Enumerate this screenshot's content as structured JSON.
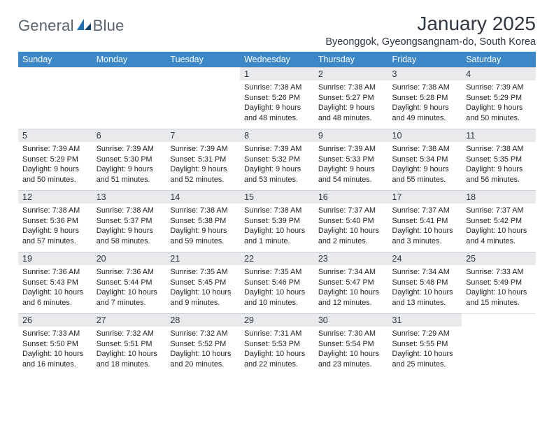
{
  "brand": {
    "name_part1": "General",
    "name_part2": "Blue"
  },
  "colors": {
    "header_bg": "#3b87c8",
    "header_text": "#ffffff",
    "daynum_bg": "#e9eaec",
    "daynum_border": "#c9ccd1",
    "title_text": "#303740",
    "logo_text": "#5a6570",
    "logo_mark": "#1f6fb3"
  },
  "title": "January 2025",
  "location": "Byeonggok, Gyeongsangnam-do, South Korea",
  "weekdays": [
    "Sunday",
    "Monday",
    "Tuesday",
    "Wednesday",
    "Thursday",
    "Friday",
    "Saturday"
  ],
  "weeks": [
    [
      null,
      null,
      null,
      {
        "n": "1",
        "sr": "Sunrise: 7:38 AM",
        "ss": "Sunset: 5:26 PM",
        "dl1": "Daylight: 9 hours",
        "dl2": "and 48 minutes."
      },
      {
        "n": "2",
        "sr": "Sunrise: 7:38 AM",
        "ss": "Sunset: 5:27 PM",
        "dl1": "Daylight: 9 hours",
        "dl2": "and 48 minutes."
      },
      {
        "n": "3",
        "sr": "Sunrise: 7:38 AM",
        "ss": "Sunset: 5:28 PM",
        "dl1": "Daylight: 9 hours",
        "dl2": "and 49 minutes."
      },
      {
        "n": "4",
        "sr": "Sunrise: 7:39 AM",
        "ss": "Sunset: 5:29 PM",
        "dl1": "Daylight: 9 hours",
        "dl2": "and 50 minutes."
      }
    ],
    [
      {
        "n": "5",
        "sr": "Sunrise: 7:39 AM",
        "ss": "Sunset: 5:29 PM",
        "dl1": "Daylight: 9 hours",
        "dl2": "and 50 minutes."
      },
      {
        "n": "6",
        "sr": "Sunrise: 7:39 AM",
        "ss": "Sunset: 5:30 PM",
        "dl1": "Daylight: 9 hours",
        "dl2": "and 51 minutes."
      },
      {
        "n": "7",
        "sr": "Sunrise: 7:39 AM",
        "ss": "Sunset: 5:31 PM",
        "dl1": "Daylight: 9 hours",
        "dl2": "and 52 minutes."
      },
      {
        "n": "8",
        "sr": "Sunrise: 7:39 AM",
        "ss": "Sunset: 5:32 PM",
        "dl1": "Daylight: 9 hours",
        "dl2": "and 53 minutes."
      },
      {
        "n": "9",
        "sr": "Sunrise: 7:39 AM",
        "ss": "Sunset: 5:33 PM",
        "dl1": "Daylight: 9 hours",
        "dl2": "and 54 minutes."
      },
      {
        "n": "10",
        "sr": "Sunrise: 7:38 AM",
        "ss": "Sunset: 5:34 PM",
        "dl1": "Daylight: 9 hours",
        "dl2": "and 55 minutes."
      },
      {
        "n": "11",
        "sr": "Sunrise: 7:38 AM",
        "ss": "Sunset: 5:35 PM",
        "dl1": "Daylight: 9 hours",
        "dl2": "and 56 minutes."
      }
    ],
    [
      {
        "n": "12",
        "sr": "Sunrise: 7:38 AM",
        "ss": "Sunset: 5:36 PM",
        "dl1": "Daylight: 9 hours",
        "dl2": "and 57 minutes."
      },
      {
        "n": "13",
        "sr": "Sunrise: 7:38 AM",
        "ss": "Sunset: 5:37 PM",
        "dl1": "Daylight: 9 hours",
        "dl2": "and 58 minutes."
      },
      {
        "n": "14",
        "sr": "Sunrise: 7:38 AM",
        "ss": "Sunset: 5:38 PM",
        "dl1": "Daylight: 9 hours",
        "dl2": "and 59 minutes."
      },
      {
        "n": "15",
        "sr": "Sunrise: 7:38 AM",
        "ss": "Sunset: 5:39 PM",
        "dl1": "Daylight: 10 hours",
        "dl2": "and 1 minute."
      },
      {
        "n": "16",
        "sr": "Sunrise: 7:37 AM",
        "ss": "Sunset: 5:40 PM",
        "dl1": "Daylight: 10 hours",
        "dl2": "and 2 minutes."
      },
      {
        "n": "17",
        "sr": "Sunrise: 7:37 AM",
        "ss": "Sunset: 5:41 PM",
        "dl1": "Daylight: 10 hours",
        "dl2": "and 3 minutes."
      },
      {
        "n": "18",
        "sr": "Sunrise: 7:37 AM",
        "ss": "Sunset: 5:42 PM",
        "dl1": "Daylight: 10 hours",
        "dl2": "and 4 minutes."
      }
    ],
    [
      {
        "n": "19",
        "sr": "Sunrise: 7:36 AM",
        "ss": "Sunset: 5:43 PM",
        "dl1": "Daylight: 10 hours",
        "dl2": "and 6 minutes."
      },
      {
        "n": "20",
        "sr": "Sunrise: 7:36 AM",
        "ss": "Sunset: 5:44 PM",
        "dl1": "Daylight: 10 hours",
        "dl2": "and 7 minutes."
      },
      {
        "n": "21",
        "sr": "Sunrise: 7:35 AM",
        "ss": "Sunset: 5:45 PM",
        "dl1": "Daylight: 10 hours",
        "dl2": "and 9 minutes."
      },
      {
        "n": "22",
        "sr": "Sunrise: 7:35 AM",
        "ss": "Sunset: 5:46 PM",
        "dl1": "Daylight: 10 hours",
        "dl2": "and 10 minutes."
      },
      {
        "n": "23",
        "sr": "Sunrise: 7:34 AM",
        "ss": "Sunset: 5:47 PM",
        "dl1": "Daylight: 10 hours",
        "dl2": "and 12 minutes."
      },
      {
        "n": "24",
        "sr": "Sunrise: 7:34 AM",
        "ss": "Sunset: 5:48 PM",
        "dl1": "Daylight: 10 hours",
        "dl2": "and 13 minutes."
      },
      {
        "n": "25",
        "sr": "Sunrise: 7:33 AM",
        "ss": "Sunset: 5:49 PM",
        "dl1": "Daylight: 10 hours",
        "dl2": "and 15 minutes."
      }
    ],
    [
      {
        "n": "26",
        "sr": "Sunrise: 7:33 AM",
        "ss": "Sunset: 5:50 PM",
        "dl1": "Daylight: 10 hours",
        "dl2": "and 16 minutes."
      },
      {
        "n": "27",
        "sr": "Sunrise: 7:32 AM",
        "ss": "Sunset: 5:51 PM",
        "dl1": "Daylight: 10 hours",
        "dl2": "and 18 minutes."
      },
      {
        "n": "28",
        "sr": "Sunrise: 7:32 AM",
        "ss": "Sunset: 5:52 PM",
        "dl1": "Daylight: 10 hours",
        "dl2": "and 20 minutes."
      },
      {
        "n": "29",
        "sr": "Sunrise: 7:31 AM",
        "ss": "Sunset: 5:53 PM",
        "dl1": "Daylight: 10 hours",
        "dl2": "and 22 minutes."
      },
      {
        "n": "30",
        "sr": "Sunrise: 7:30 AM",
        "ss": "Sunset: 5:54 PM",
        "dl1": "Daylight: 10 hours",
        "dl2": "and 23 minutes."
      },
      {
        "n": "31",
        "sr": "Sunrise: 7:29 AM",
        "ss": "Sunset: 5:55 PM",
        "dl1": "Daylight: 10 hours",
        "dl2": "and 25 minutes."
      },
      null
    ]
  ]
}
